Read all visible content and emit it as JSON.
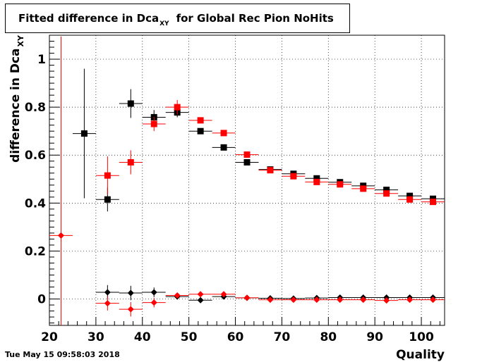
{
  "title": {
    "prefix": "Fitted difference in Dca",
    "subscript": "XY",
    "suffix": "for Global Rec Pion NoHits"
  },
  "timestamp": "Tue May 15 09:58:03 2018",
  "chart_data": {
    "type": "scatter",
    "xlabel": "Quality",
    "ylabel": "difference in Dca",
    "ylabel_subscript": "XY",
    "xlim": [
      20,
      105
    ],
    "ylim": [
      -0.11,
      1.1
    ],
    "x_ticks": [
      20,
      30,
      40,
      50,
      60,
      70,
      80,
      90,
      100
    ],
    "y_ticks": [
      0,
      0.2,
      0.4,
      0.6,
      0.8,
      1
    ],
    "y_tick_labels": [
      "0",
      "0.2",
      "0.4",
      "0.6",
      "0.8",
      "1"
    ],
    "grid": true,
    "colors": {
      "black": "#000000",
      "red": "#ff0000"
    },
    "series": [
      {
        "marker": "square",
        "color": "#000000",
        "points": [
          {
            "x": 27.5,
            "y": 0.69,
            "yerr_lo": 0.27,
            "yerr_hi": 0.27
          },
          {
            "x": 32.5,
            "y": 0.415,
            "yerr_lo": 0.05,
            "yerr_hi": 0.05
          },
          {
            "x": 37.5,
            "y": 0.815,
            "yerr_lo": 0.06,
            "yerr_hi": 0.06
          },
          {
            "x": 42.5,
            "y": 0.758,
            "yerr_lo": 0.03,
            "yerr_hi": 0.03
          },
          {
            "x": 47.5,
            "y": 0.778,
            "yerr_lo": 0.02,
            "yerr_hi": 0.02
          },
          {
            "x": 52.5,
            "y": 0.7,
            "yerr_lo": 0.01,
            "yerr_hi": 0.01
          },
          {
            "x": 57.5,
            "y": 0.632,
            "yerr_lo": 0.005,
            "yerr_hi": 0.005
          },
          {
            "x": 62.5,
            "y": 0.57,
            "yerr_lo": 0.005,
            "yerr_hi": 0.005
          },
          {
            "x": 67.5,
            "y": 0.54,
            "yerr_lo": 0.005,
            "yerr_hi": 0.005
          },
          {
            "x": 72.5,
            "y": 0.522,
            "yerr_lo": 0.005,
            "yerr_hi": 0.005
          },
          {
            "x": 77.5,
            "y": 0.503,
            "yerr_lo": 0.005,
            "yerr_hi": 0.005
          },
          {
            "x": 82.5,
            "y": 0.487,
            "yerr_lo": 0.005,
            "yerr_hi": 0.005
          },
          {
            "x": 87.5,
            "y": 0.472,
            "yerr_lo": 0.005,
            "yerr_hi": 0.005
          },
          {
            "x": 92.5,
            "y": 0.455,
            "yerr_lo": 0.005,
            "yerr_hi": 0.005
          },
          {
            "x": 97.5,
            "y": 0.43,
            "yerr_lo": 0.005,
            "yerr_hi": 0.005
          },
          {
            "x": 102.5,
            "y": 0.418,
            "yerr_lo": 0.005,
            "yerr_hi": 0.005
          }
        ]
      },
      {
        "marker": "square",
        "color": "#ff0000",
        "points": [
          {
            "x": 32.5,
            "y": 0.515,
            "yerr_lo": 0.08,
            "yerr_hi": 0.08
          },
          {
            "x": 37.5,
            "y": 0.57,
            "yerr_lo": 0.05,
            "yerr_hi": 0.05
          },
          {
            "x": 42.5,
            "y": 0.73,
            "yerr_lo": 0.03,
            "yerr_hi": 0.03
          },
          {
            "x": 47.5,
            "y": 0.8,
            "yerr_lo": 0.03,
            "yerr_hi": 0.03
          },
          {
            "x": 52.5,
            "y": 0.745,
            "yerr_lo": 0.01,
            "yerr_hi": 0.01
          },
          {
            "x": 57.5,
            "y": 0.692,
            "yerr_lo": 0.005,
            "yerr_hi": 0.005
          },
          {
            "x": 62.5,
            "y": 0.602,
            "yerr_lo": 0.005,
            "yerr_hi": 0.005
          },
          {
            "x": 67.5,
            "y": 0.537,
            "yerr_lo": 0.005,
            "yerr_hi": 0.005
          },
          {
            "x": 72.5,
            "y": 0.512,
            "yerr_lo": 0.005,
            "yerr_hi": 0.005
          },
          {
            "x": 77.5,
            "y": 0.488,
            "yerr_lo": 0.005,
            "yerr_hi": 0.005
          },
          {
            "x": 82.5,
            "y": 0.478,
            "yerr_lo": 0.005,
            "yerr_hi": 0.005
          },
          {
            "x": 87.5,
            "y": 0.46,
            "yerr_lo": 0.005,
            "yerr_hi": 0.005
          },
          {
            "x": 92.5,
            "y": 0.44,
            "yerr_lo": 0.005,
            "yerr_hi": 0.005
          },
          {
            "x": 97.5,
            "y": 0.415,
            "yerr_lo": 0.005,
            "yerr_hi": 0.005
          },
          {
            "x": 102.5,
            "y": 0.405,
            "yerr_lo": 0.005,
            "yerr_hi": 0.005
          }
        ]
      },
      {
        "marker": "diamond",
        "color": "#000000",
        "points": [
          {
            "x": 32.5,
            "y": 0.028,
            "yerr_lo": 0.03,
            "yerr_hi": 0.03
          },
          {
            "x": 37.5,
            "y": 0.025,
            "yerr_lo": 0.03,
            "yerr_hi": 0.03
          },
          {
            "x": 42.5,
            "y": 0.028,
            "yerr_lo": 0.02,
            "yerr_hi": 0.02
          },
          {
            "x": 47.5,
            "y": 0.01,
            "yerr_lo": 0.01,
            "yerr_hi": 0.01
          },
          {
            "x": 52.5,
            "y": -0.005,
            "yerr_lo": 0.005,
            "yerr_hi": 0.005
          },
          {
            "x": 57.5,
            "y": 0.01,
            "yerr_lo": 0.005,
            "yerr_hi": 0.005
          },
          {
            "x": 62.5,
            "y": 0.005,
            "yerr_lo": 0.003,
            "yerr_hi": 0.003
          },
          {
            "x": 67.5,
            "y": 0.003,
            "yerr_lo": 0.003,
            "yerr_hi": 0.003
          },
          {
            "x": 72.5,
            "y": 0.002,
            "yerr_lo": 0.003,
            "yerr_hi": 0.003
          },
          {
            "x": 77.5,
            "y": 0.004,
            "yerr_lo": 0.003,
            "yerr_hi": 0.003
          },
          {
            "x": 82.5,
            "y": 0.006,
            "yerr_lo": 0.003,
            "yerr_hi": 0.003
          },
          {
            "x": 87.5,
            "y": 0.006,
            "yerr_lo": 0.003,
            "yerr_hi": 0.003
          },
          {
            "x": 92.5,
            "y": 0.006,
            "yerr_lo": 0.003,
            "yerr_hi": 0.003
          },
          {
            "x": 97.5,
            "y": 0.006,
            "yerr_lo": 0.003,
            "yerr_hi": 0.003
          },
          {
            "x": 102.5,
            "y": 0.006,
            "yerr_lo": 0.003,
            "yerr_hi": 0.003
          }
        ]
      },
      {
        "marker": "diamond",
        "color": "#ff0000",
        "points": [
          {
            "x": 22.5,
            "y": 0.265,
            "yerr_lo": 0.4,
            "yerr_hi": 0.83
          },
          {
            "x": 32.5,
            "y": -0.018,
            "yerr_lo": 0.03,
            "yerr_hi": 0.03
          },
          {
            "x": 37.5,
            "y": -0.043,
            "yerr_lo": 0.03,
            "yerr_hi": 0.03
          },
          {
            "x": 42.5,
            "y": -0.015,
            "yerr_lo": 0.02,
            "yerr_hi": 0.02
          },
          {
            "x": 47.5,
            "y": 0.015,
            "yerr_lo": 0.01,
            "yerr_hi": 0.01
          },
          {
            "x": 52.5,
            "y": 0.02,
            "yerr_lo": 0.005,
            "yerr_hi": 0.005
          },
          {
            "x": 57.5,
            "y": 0.02,
            "yerr_lo": 0.005,
            "yerr_hi": 0.005
          },
          {
            "x": 62.5,
            "y": 0.005,
            "yerr_lo": 0.003,
            "yerr_hi": 0.003
          },
          {
            "x": 67.5,
            "y": -0.003,
            "yerr_lo": 0.003,
            "yerr_hi": 0.003
          },
          {
            "x": 72.5,
            "y": -0.003,
            "yerr_lo": 0.003,
            "yerr_hi": 0.003
          },
          {
            "x": 77.5,
            "y": -0.003,
            "yerr_lo": 0.003,
            "yerr_hi": 0.003
          },
          {
            "x": 82.5,
            "y": -0.003,
            "yerr_lo": 0.003,
            "yerr_hi": 0.003
          },
          {
            "x": 87.5,
            "y": -0.003,
            "yerr_lo": 0.003,
            "yerr_hi": 0.003
          },
          {
            "x": 92.5,
            "y": -0.006,
            "yerr_lo": 0.003,
            "yerr_hi": 0.003
          },
          {
            "x": 97.5,
            "y": -0.003,
            "yerr_lo": 0.003,
            "yerr_hi": 0.003
          },
          {
            "x": 102.5,
            "y": -0.003,
            "yerr_lo": 0.003,
            "yerr_hi": 0.003
          }
        ]
      }
    ]
  }
}
